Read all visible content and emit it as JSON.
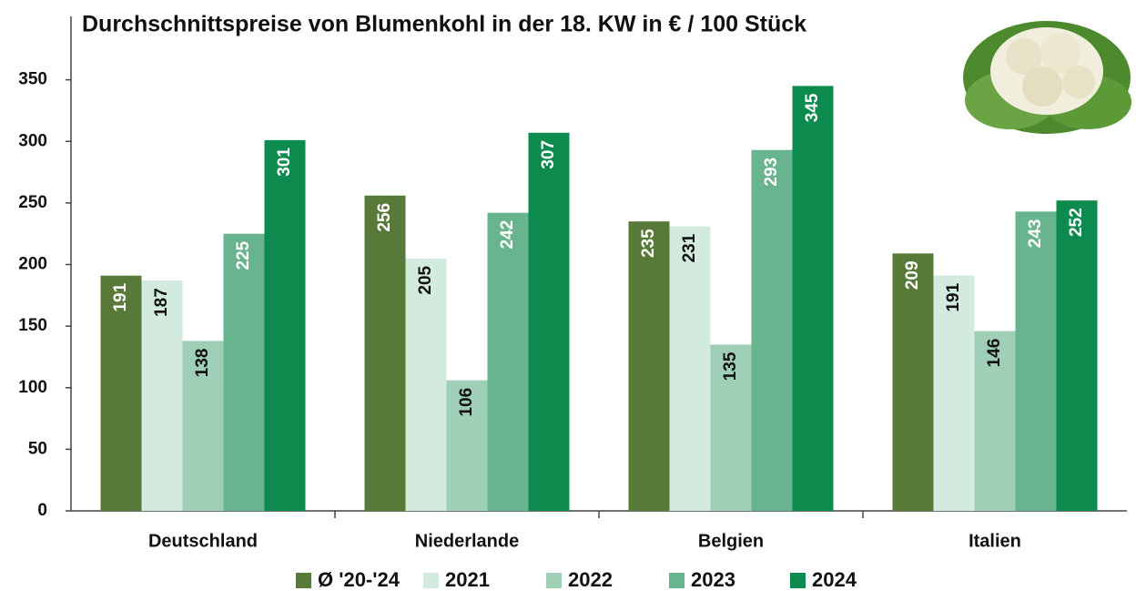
{
  "chart_data": {
    "type": "bar",
    "title": "Durchschnittspreise von Blumenkohl in der 18. KW in € / 100 Stück",
    "categories": [
      "Deutschland",
      "Niederlande",
      "Belgien",
      "Italien"
    ],
    "series": [
      {
        "name": "Ø '20-'24",
        "color": "#587a38",
        "label_color": "#ffffff",
        "values": [
          191,
          256,
          235,
          209
        ]
      },
      {
        "name": "2021",
        "color": "#d3ebdf",
        "label_color": "#111111",
        "values": [
          187,
          205,
          231,
          191
        ]
      },
      {
        "name": "2022",
        "color": "#9fcfb6",
        "label_color": "#111111",
        "values": [
          138,
          106,
          135,
          146
        ]
      },
      {
        "name": "2023",
        "color": "#67b48f",
        "label_color": "#ffffff",
        "values": [
          225,
          242,
          293,
          243
        ]
      },
      {
        "name": "2024",
        "color": "#0d8a4d",
        "label_color": "#ffffff",
        "values": [
          301,
          307,
          345,
          252
        ]
      }
    ],
    "ylim": [
      0,
      400
    ],
    "yticks": [
      0,
      50,
      100,
      150,
      200,
      250,
      300,
      350
    ],
    "grid": false
  }
}
